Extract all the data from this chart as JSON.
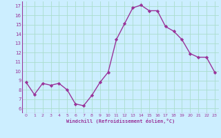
{
  "x": [
    0,
    1,
    2,
    3,
    4,
    5,
    6,
    7,
    8,
    9,
    10,
    11,
    12,
    13,
    14,
    15,
    16,
    17,
    18,
    19,
    20,
    21,
    22,
    23
  ],
  "y": [
    8.8,
    7.5,
    8.7,
    8.5,
    8.7,
    8.0,
    6.5,
    6.3,
    7.4,
    8.8,
    9.9,
    13.4,
    15.1,
    16.8,
    17.1,
    16.5,
    16.5,
    14.8,
    14.3,
    13.4,
    11.9,
    11.5,
    11.5,
    9.9
  ],
  "line_color": "#993399",
  "marker": "D",
  "marker_size": 2.2,
  "line_width": 1.0,
  "bg_color": "#cceeff",
  "grid_color": "#aaddcc",
  "xlabel": "Windchill (Refroidissement éolien,°C)",
  "xlabel_color": "#993399",
  "tick_color": "#993399",
  "xlim": [
    -0.5,
    23.5
  ],
  "ylim": [
    5.5,
    17.5
  ],
  "yticks": [
    6,
    7,
    8,
    9,
    10,
    11,
    12,
    13,
    14,
    15,
    16,
    17
  ],
  "xticks": [
    0,
    1,
    2,
    3,
    4,
    5,
    6,
    7,
    8,
    9,
    10,
    11,
    12,
    13,
    14,
    15,
    16,
    17,
    18,
    19,
    20,
    21,
    22,
    23
  ]
}
